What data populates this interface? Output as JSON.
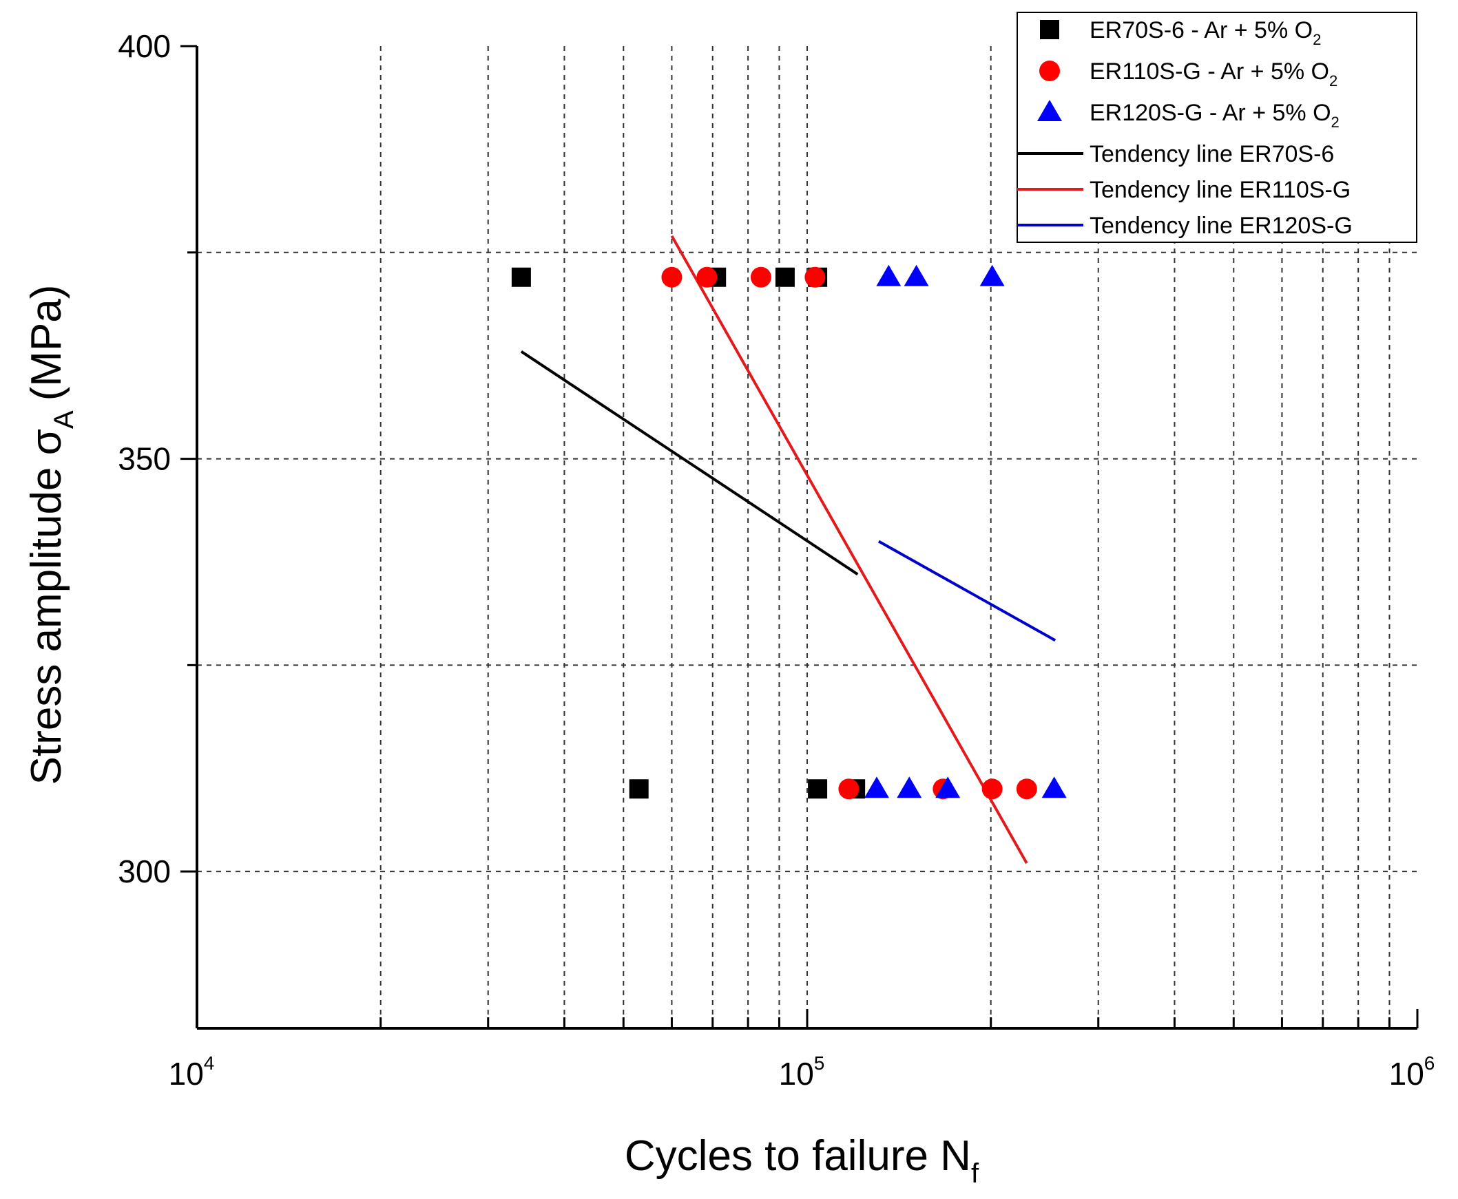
{
  "chart_data": {
    "type": "scatter",
    "title": "",
    "xlabel": "Cycles to failure N",
    "xlabel_sub": "f",
    "ylabel": "Stress amplitude σ",
    "ylabel_sub": "A",
    "ylabel_unit": "(MPa)",
    "xscale": "log",
    "xlim": [
      10000,
      1000000
    ],
    "ylim": [
      281,
      400
    ],
    "grid": true,
    "x_ticks": [
      {
        "base": "10",
        "exp": "4",
        "value": 10000
      },
      {
        "base": "10",
        "exp": "5",
        "value": 100000
      },
      {
        "base": "10",
        "exp": "6",
        "value": 1000000
      }
    ],
    "y_ticks": [
      {
        "label": "400",
        "value": 400
      },
      {
        "label": "350",
        "value": 350
      },
      {
        "label": "300",
        "value": 300
      }
    ],
    "y_minor_ticks": [
      375,
      325
    ],
    "legend_position": "top-right",
    "series": [
      {
        "name": "ER70S-6 - Ar + 5% O",
        "name_sub": "2",
        "kind": "scatter",
        "marker": "square",
        "color": "#000000",
        "points": [
          [
            34000,
            372
          ],
          [
            71000,
            372
          ],
          [
            92000,
            372
          ],
          [
            104000,
            372
          ],
          [
            53000,
            310
          ],
          [
            104000,
            310
          ],
          [
            120000,
            310
          ]
        ]
      },
      {
        "name": "ER110S-G - Ar + 5% O",
        "name_sub": "2",
        "kind": "scatter",
        "marker": "circle",
        "color": "#ff0000",
        "points": [
          [
            60000,
            372
          ],
          [
            68500,
            372
          ],
          [
            84000,
            372
          ],
          [
            103000,
            372
          ],
          [
            117000,
            310
          ],
          [
            167000,
            310
          ],
          [
            201000,
            310
          ],
          [
            229000,
            310
          ]
        ]
      },
      {
        "name": "ER120S-G - Ar + 5% O",
        "name_sub": "2",
        "kind": "scatter",
        "marker": "triangle",
        "color": "#0000ff",
        "points": [
          [
            136000,
            372
          ],
          [
            151000,
            372
          ],
          [
            201000,
            372
          ],
          [
            130000,
            310
          ],
          [
            147000,
            310
          ],
          [
            170000,
            310
          ],
          [
            254000,
            310
          ]
        ]
      },
      {
        "name": "Tendency line ER70S-6",
        "kind": "line",
        "color": "#000000",
        "points": [
          [
            34000,
            363
          ],
          [
            121000,
            336
          ]
        ]
      },
      {
        "name": "Tendency line ER110S-G",
        "kind": "line",
        "color": "#e31a1c",
        "points": [
          [
            60000,
            377
          ],
          [
            229000,
            301
          ]
        ]
      },
      {
        "name": "Tendency line ER120S-G",
        "kind": "line",
        "color": "#0000cc",
        "points": [
          [
            131000,
            340
          ],
          [
            255000,
            328
          ]
        ]
      }
    ]
  }
}
